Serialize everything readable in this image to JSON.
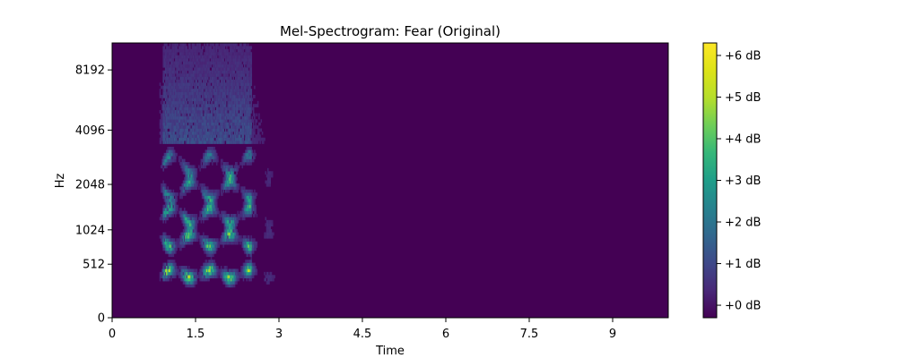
{
  "chart_data": {
    "type": "heatmap",
    "title": "Mel-Spectrogram: Fear (Original)",
    "xlabel": "Time",
    "ylabel": "Hz",
    "xlim": [
      0,
      10
    ],
    "x_ticks": [
      0,
      1.5,
      3,
      4.5,
      6,
      7.5,
      9
    ],
    "x_tick_labels": [
      "0",
      "1.5",
      "3",
      "4.5",
      "6",
      "7.5",
      "9"
    ],
    "y_scale": "mel",
    "ylim": [
      0,
      11025
    ],
    "y_ticks": [
      0,
      512,
      1024,
      2048,
      4096,
      8192
    ],
    "y_tick_labels": [
      "0",
      "512",
      "1024",
      "2048",
      "4096",
      "8192"
    ],
    "colorbar": {
      "colormap": "viridis",
      "range": [
        -0.3,
        6.3
      ],
      "ticks": [
        0,
        1,
        2,
        3,
        4,
        5,
        6
      ],
      "tick_labels": [
        "+0 dB",
        "+1 dB",
        "+2 dB",
        "+3 dB",
        "+4 dB",
        "+5 dB",
        "+6 dB"
      ]
    },
    "signal": {
      "active_time_range": [
        0.9,
        2.5
      ],
      "faint_tail_to": 3.0,
      "formant_peaks_hz": [
        400,
        850,
        1300,
        1900,
        2700
      ],
      "max_db": 6.3
    },
    "grid": false,
    "legend": "none"
  }
}
